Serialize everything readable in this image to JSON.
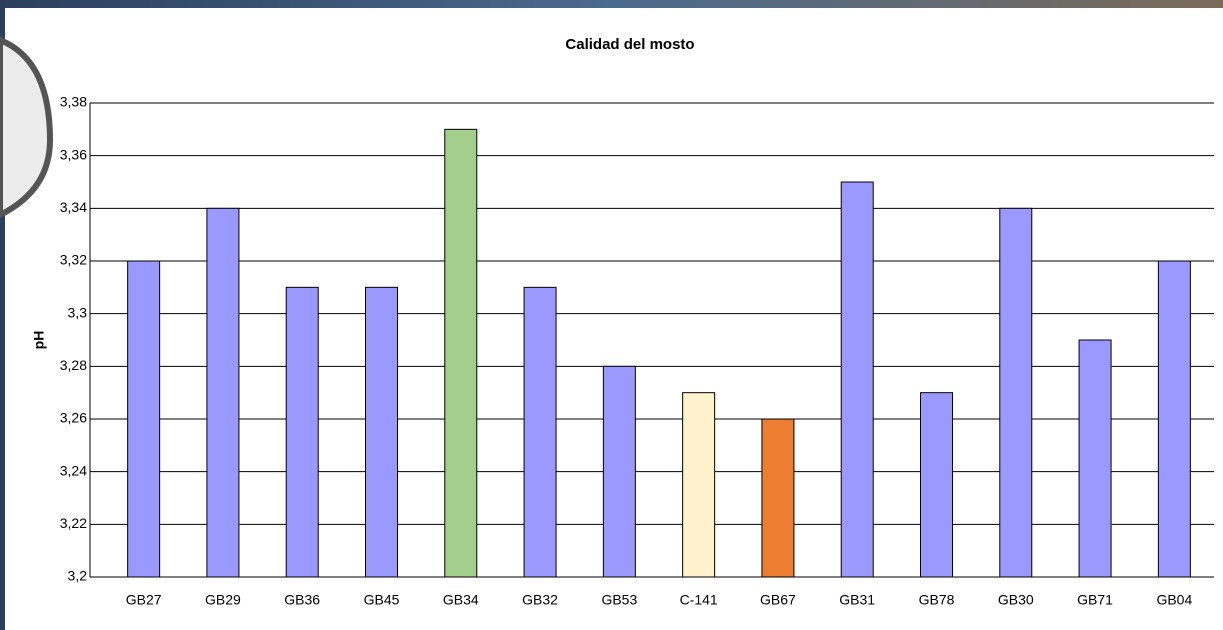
{
  "chart_data": {
    "type": "bar",
    "title": "Calidad del mosto",
    "y_label": "pH",
    "categories": [
      "GB27",
      "GB29",
      "GB36",
      "GB45",
      "GB34",
      "GB32",
      "GB53",
      "C-141",
      "GB67",
      "GB31",
      "GB78",
      "GB30",
      "GB71",
      "GB04"
    ],
    "values": [
      3.32,
      3.34,
      3.31,
      3.31,
      3.37,
      3.31,
      3.28,
      3.27,
      3.26,
      3.35,
      3.27,
      3.34,
      3.29,
      3.32
    ],
    "colors": [
      "#9999ff",
      "#9999ff",
      "#9999ff",
      "#9999ff",
      "#a3cf8c",
      "#9999ff",
      "#9999ff",
      "#fff2cc",
      "#ed7d31",
      "#9999ff",
      "#9999ff",
      "#9999ff",
      "#9999ff",
      "#9999ff"
    ],
    "ylim": [
      3.2,
      3.38
    ],
    "yticks": [
      {
        "value": 3.2,
        "label": "3,2"
      },
      {
        "value": 3.22,
        "label": "3,22"
      },
      {
        "value": 3.24,
        "label": "3,24"
      },
      {
        "value": 3.26,
        "label": "3,26"
      },
      {
        "value": 3.28,
        "label": "3,28"
      },
      {
        "value": 3.3,
        "label": "3,3"
      },
      {
        "value": 3.32,
        "label": "3,32"
      },
      {
        "value": 3.34,
        "label": "3,34"
      },
      {
        "value": 3.36,
        "label": "3,36"
      },
      {
        "value": 3.38,
        "label": "3,38"
      }
    ],
    "grid": true
  }
}
